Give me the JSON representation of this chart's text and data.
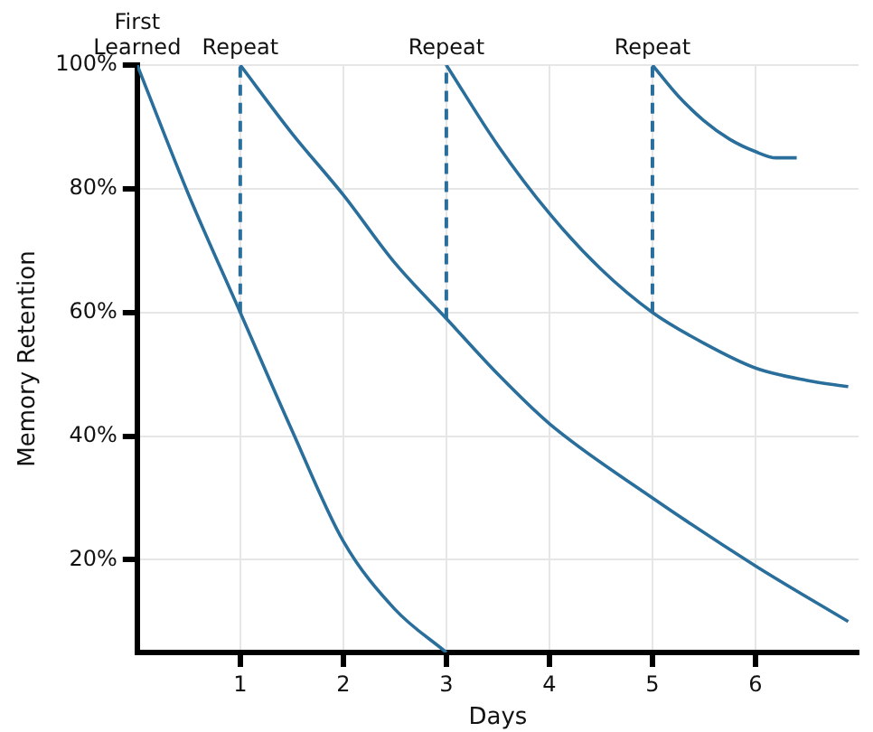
{
  "chart_data": {
    "type": "line",
    "xlabel": "Days",
    "ylabel": "Memory Retention",
    "xlim": [
      0,
      7
    ],
    "xticks": [
      1,
      2,
      3,
      4,
      5,
      6
    ],
    "ylim": [
      5,
      100
    ],
    "yticks": [
      {
        "value": 20,
        "label": "20%"
      },
      {
        "value": 40,
        "label": "40%"
      },
      {
        "value": 60,
        "label": "60%"
      },
      {
        "value": 80,
        "label": "80%"
      },
      {
        "value": 100,
        "label": "100%"
      }
    ],
    "grid": true,
    "legend": false,
    "marker": "none",
    "line_style": "solid",
    "series": [
      {
        "color": "#2a6f9c",
        "x": [
          0,
          0.5,
          1,
          1.5,
          2,
          2.5,
          3
        ],
        "values": [
          100,
          79,
          60,
          41,
          23,
          12,
          5
        ]
      },
      {
        "color": "#2a6f9c",
        "x": [
          1,
          1.5,
          2,
          2.5,
          3,
          3.5,
          4,
          5,
          6,
          6.9
        ],
        "values": [
          100,
          89,
          79,
          68,
          59,
          50,
          42,
          30,
          19,
          10
        ]
      },
      {
        "color": "#2a6f9c",
        "x": [
          3,
          3.5,
          4,
          4.5,
          5,
          5.5,
          6,
          6.5,
          6.9
        ],
        "values": [
          100,
          87,
          76,
          67,
          60,
          55,
          51,
          49,
          48
        ]
      },
      {
        "color": "#2a6f9c",
        "x": [
          5,
          5.25,
          5.5,
          5.75,
          6,
          6.2,
          6.4
        ],
        "values": [
          100,
          95,
          91,
          88,
          86,
          85,
          85
        ]
      }
    ],
    "ref_lines": [
      {
        "axis": "x",
        "value": 1,
        "label": "Repeat",
        "line_style": "dashed"
      },
      {
        "axis": "x",
        "value": 3,
        "label": "Repeat",
        "line_style": "dashed"
      },
      {
        "axis": "x",
        "value": 5,
        "label": "Repeat",
        "line_style": "dashed"
      }
    ],
    "annotations": [
      {
        "text": "First\nLearned",
        "x": 0,
        "y": 100
      }
    ]
  }
}
